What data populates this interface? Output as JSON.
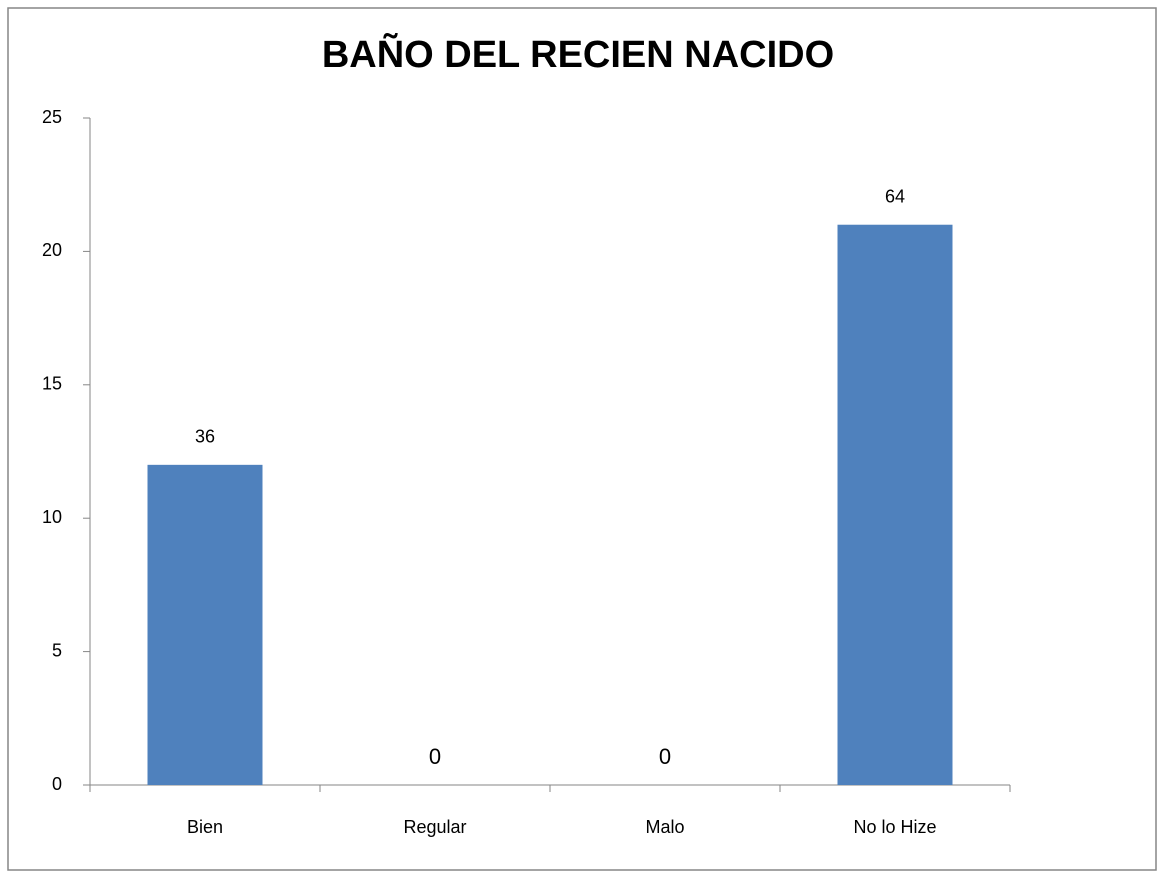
{
  "chart_data": {
    "type": "bar",
    "title": "BAÑO DEL RECIEN NACIDO",
    "categories": [
      "Bien",
      "Regular",
      "Malo",
      "No lo Hize"
    ],
    "values": [
      12,
      0,
      0,
      21
    ],
    "bar_labels": [
      36,
      0,
      0,
      64
    ],
    "color": "#4f81bd",
    "ylim": [
      0,
      25
    ],
    "yticks": [
      0,
      5,
      10,
      15,
      20,
      25
    ],
    "grid": false
  }
}
